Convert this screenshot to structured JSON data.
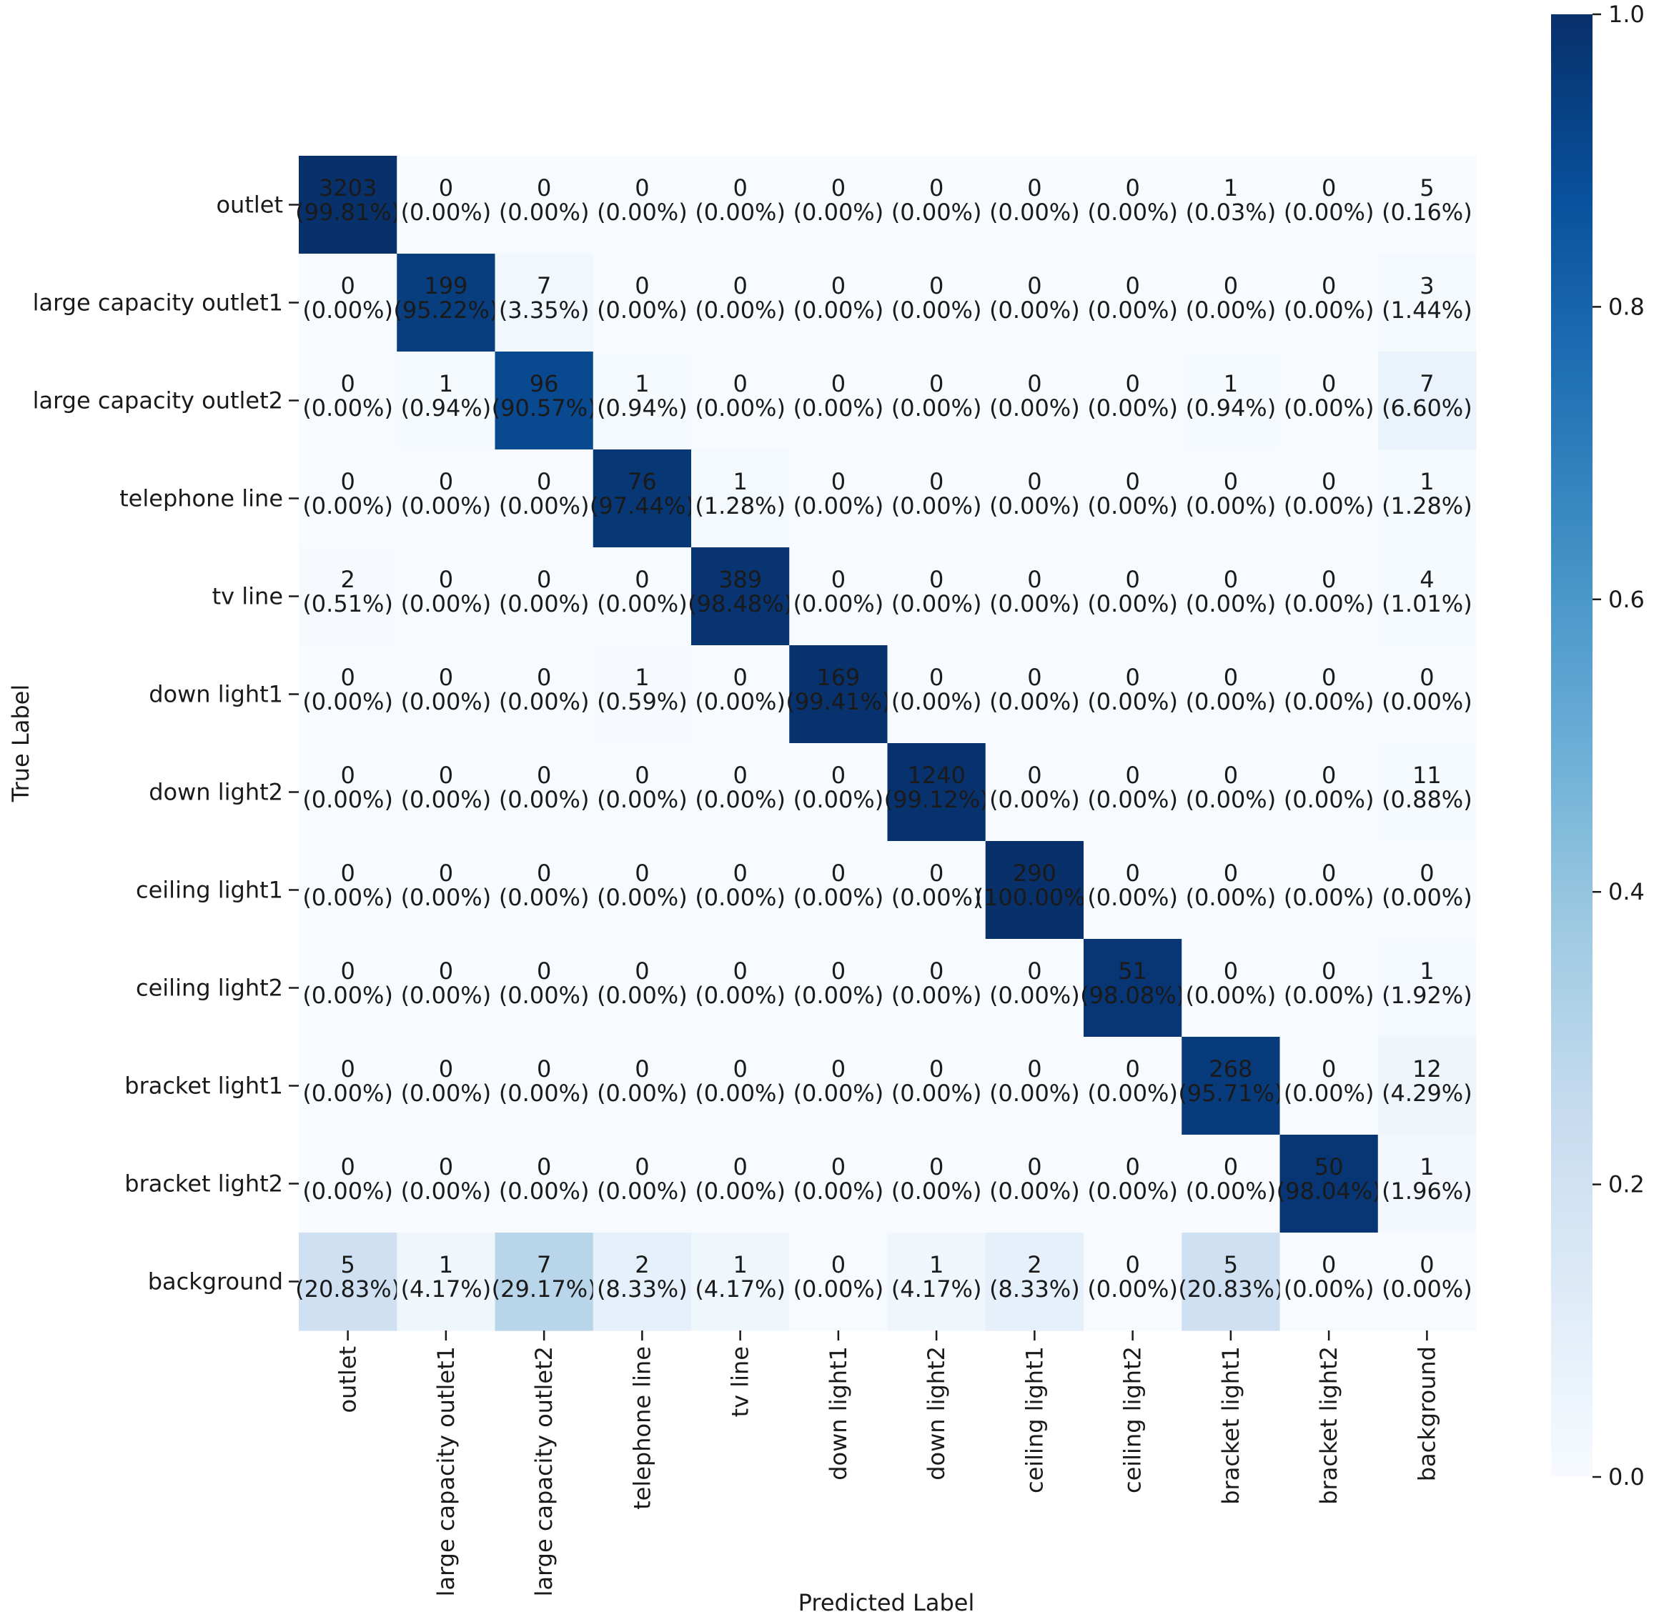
{
  "chart_data": {
    "type": "heatmap",
    "title": "",
    "xlabel": "Predicted Label",
    "ylabel": "True Label",
    "colormap": "Blues",
    "vmin": 0.0,
    "vmax": 1.0,
    "colorbar_ticks": [
      "0.0",
      "0.2",
      "0.4",
      "0.6",
      "0.8",
      "1.0"
    ],
    "row_labels": [
      "outlet",
      "large capacity outlet1",
      "large capacity outlet2",
      "telephone line",
      "tv line",
      "down light1",
      "down light2",
      "ceiling light1",
      "ceiling light2",
      "bracket light1",
      "bracket light2",
      "background"
    ],
    "col_labels": [
      "outlet",
      "large capacity outlet1",
      "large capacity outlet2",
      "telephone line",
      "tv line",
      "down light1",
      "down light2",
      "ceiling light1",
      "ceiling light2",
      "bracket light1",
      "bracket light2",
      "background"
    ],
    "counts": [
      [
        3203,
        0,
        0,
        0,
        0,
        0,
        0,
        0,
        0,
        1,
        0,
        5
      ],
      [
        0,
        199,
        7,
        0,
        0,
        0,
        0,
        0,
        0,
        0,
        0,
        3
      ],
      [
        0,
        1,
        96,
        1,
        0,
        0,
        0,
        0,
        0,
        1,
        0,
        7
      ],
      [
        0,
        0,
        0,
        76,
        1,
        0,
        0,
        0,
        0,
        0,
        0,
        1
      ],
      [
        2,
        0,
        0,
        0,
        389,
        0,
        0,
        0,
        0,
        0,
        0,
        4
      ],
      [
        0,
        0,
        0,
        1,
        0,
        169,
        0,
        0,
        0,
        0,
        0,
        0
      ],
      [
        0,
        0,
        0,
        0,
        0,
        0,
        1240,
        0,
        0,
        0,
        0,
        11
      ],
      [
        0,
        0,
        0,
        0,
        0,
        0,
        0,
        290,
        0,
        0,
        0,
        0
      ],
      [
        0,
        0,
        0,
        0,
        0,
        0,
        0,
        0,
        51,
        0,
        0,
        1
      ],
      [
        0,
        0,
        0,
        0,
        0,
        0,
        0,
        0,
        0,
        268,
        0,
        12
      ],
      [
        0,
        0,
        0,
        0,
        0,
        0,
        0,
        0,
        0,
        0,
        50,
        1
      ],
      [
        5,
        1,
        7,
        2,
        1,
        0,
        1,
        2,
        0,
        5,
        0,
        0
      ]
    ],
    "percentages": [
      [
        "99.81%",
        "0.00%",
        "0.00%",
        "0.00%",
        "0.00%",
        "0.00%",
        "0.00%",
        "0.00%",
        "0.00%",
        "0.03%",
        "0.00%",
        "0.16%"
      ],
      [
        "0.00%",
        "95.22%",
        "3.35%",
        "0.00%",
        "0.00%",
        "0.00%",
        "0.00%",
        "0.00%",
        "0.00%",
        "0.00%",
        "0.00%",
        "1.44%"
      ],
      [
        "0.00%",
        "0.94%",
        "90.57%",
        "0.94%",
        "0.00%",
        "0.00%",
        "0.00%",
        "0.00%",
        "0.00%",
        "0.94%",
        "0.00%",
        "6.60%"
      ],
      [
        "0.00%",
        "0.00%",
        "0.00%",
        "97.44%",
        "1.28%",
        "0.00%",
        "0.00%",
        "0.00%",
        "0.00%",
        "0.00%",
        "0.00%",
        "1.28%"
      ],
      [
        "0.51%",
        "0.00%",
        "0.00%",
        "0.00%",
        "98.48%",
        "0.00%",
        "0.00%",
        "0.00%",
        "0.00%",
        "0.00%",
        "0.00%",
        "1.01%"
      ],
      [
        "0.00%",
        "0.00%",
        "0.00%",
        "0.59%",
        "0.00%",
        "99.41%",
        "0.00%",
        "0.00%",
        "0.00%",
        "0.00%",
        "0.00%",
        "0.00%"
      ],
      [
        "0.00%",
        "0.00%",
        "0.00%",
        "0.00%",
        "0.00%",
        "0.00%",
        "99.12%",
        "0.00%",
        "0.00%",
        "0.00%",
        "0.00%",
        "0.88%"
      ],
      [
        "0.00%",
        "0.00%",
        "0.00%",
        "0.00%",
        "0.00%",
        "0.00%",
        "0.00%",
        "100.00%",
        "0.00%",
        "0.00%",
        "0.00%",
        "0.00%"
      ],
      [
        "0.00%",
        "0.00%",
        "0.00%",
        "0.00%",
        "0.00%",
        "0.00%",
        "0.00%",
        "0.00%",
        "98.08%",
        "0.00%",
        "0.00%",
        "1.92%"
      ],
      [
        "0.00%",
        "0.00%",
        "0.00%",
        "0.00%",
        "0.00%",
        "0.00%",
        "0.00%",
        "0.00%",
        "0.00%",
        "95.71%",
        "0.00%",
        "4.29%"
      ],
      [
        "0.00%",
        "0.00%",
        "0.00%",
        "0.00%",
        "0.00%",
        "0.00%",
        "0.00%",
        "0.00%",
        "0.00%",
        "0.00%",
        "98.04%",
        "1.96%"
      ],
      [
        "20.83%",
        "4.17%",
        "29.17%",
        "8.33%",
        "4.17%",
        "0.00%",
        "4.17%",
        "8.33%",
        "0.00%",
        "20.83%",
        "0.00%",
        "0.00%"
      ]
    ]
  }
}
